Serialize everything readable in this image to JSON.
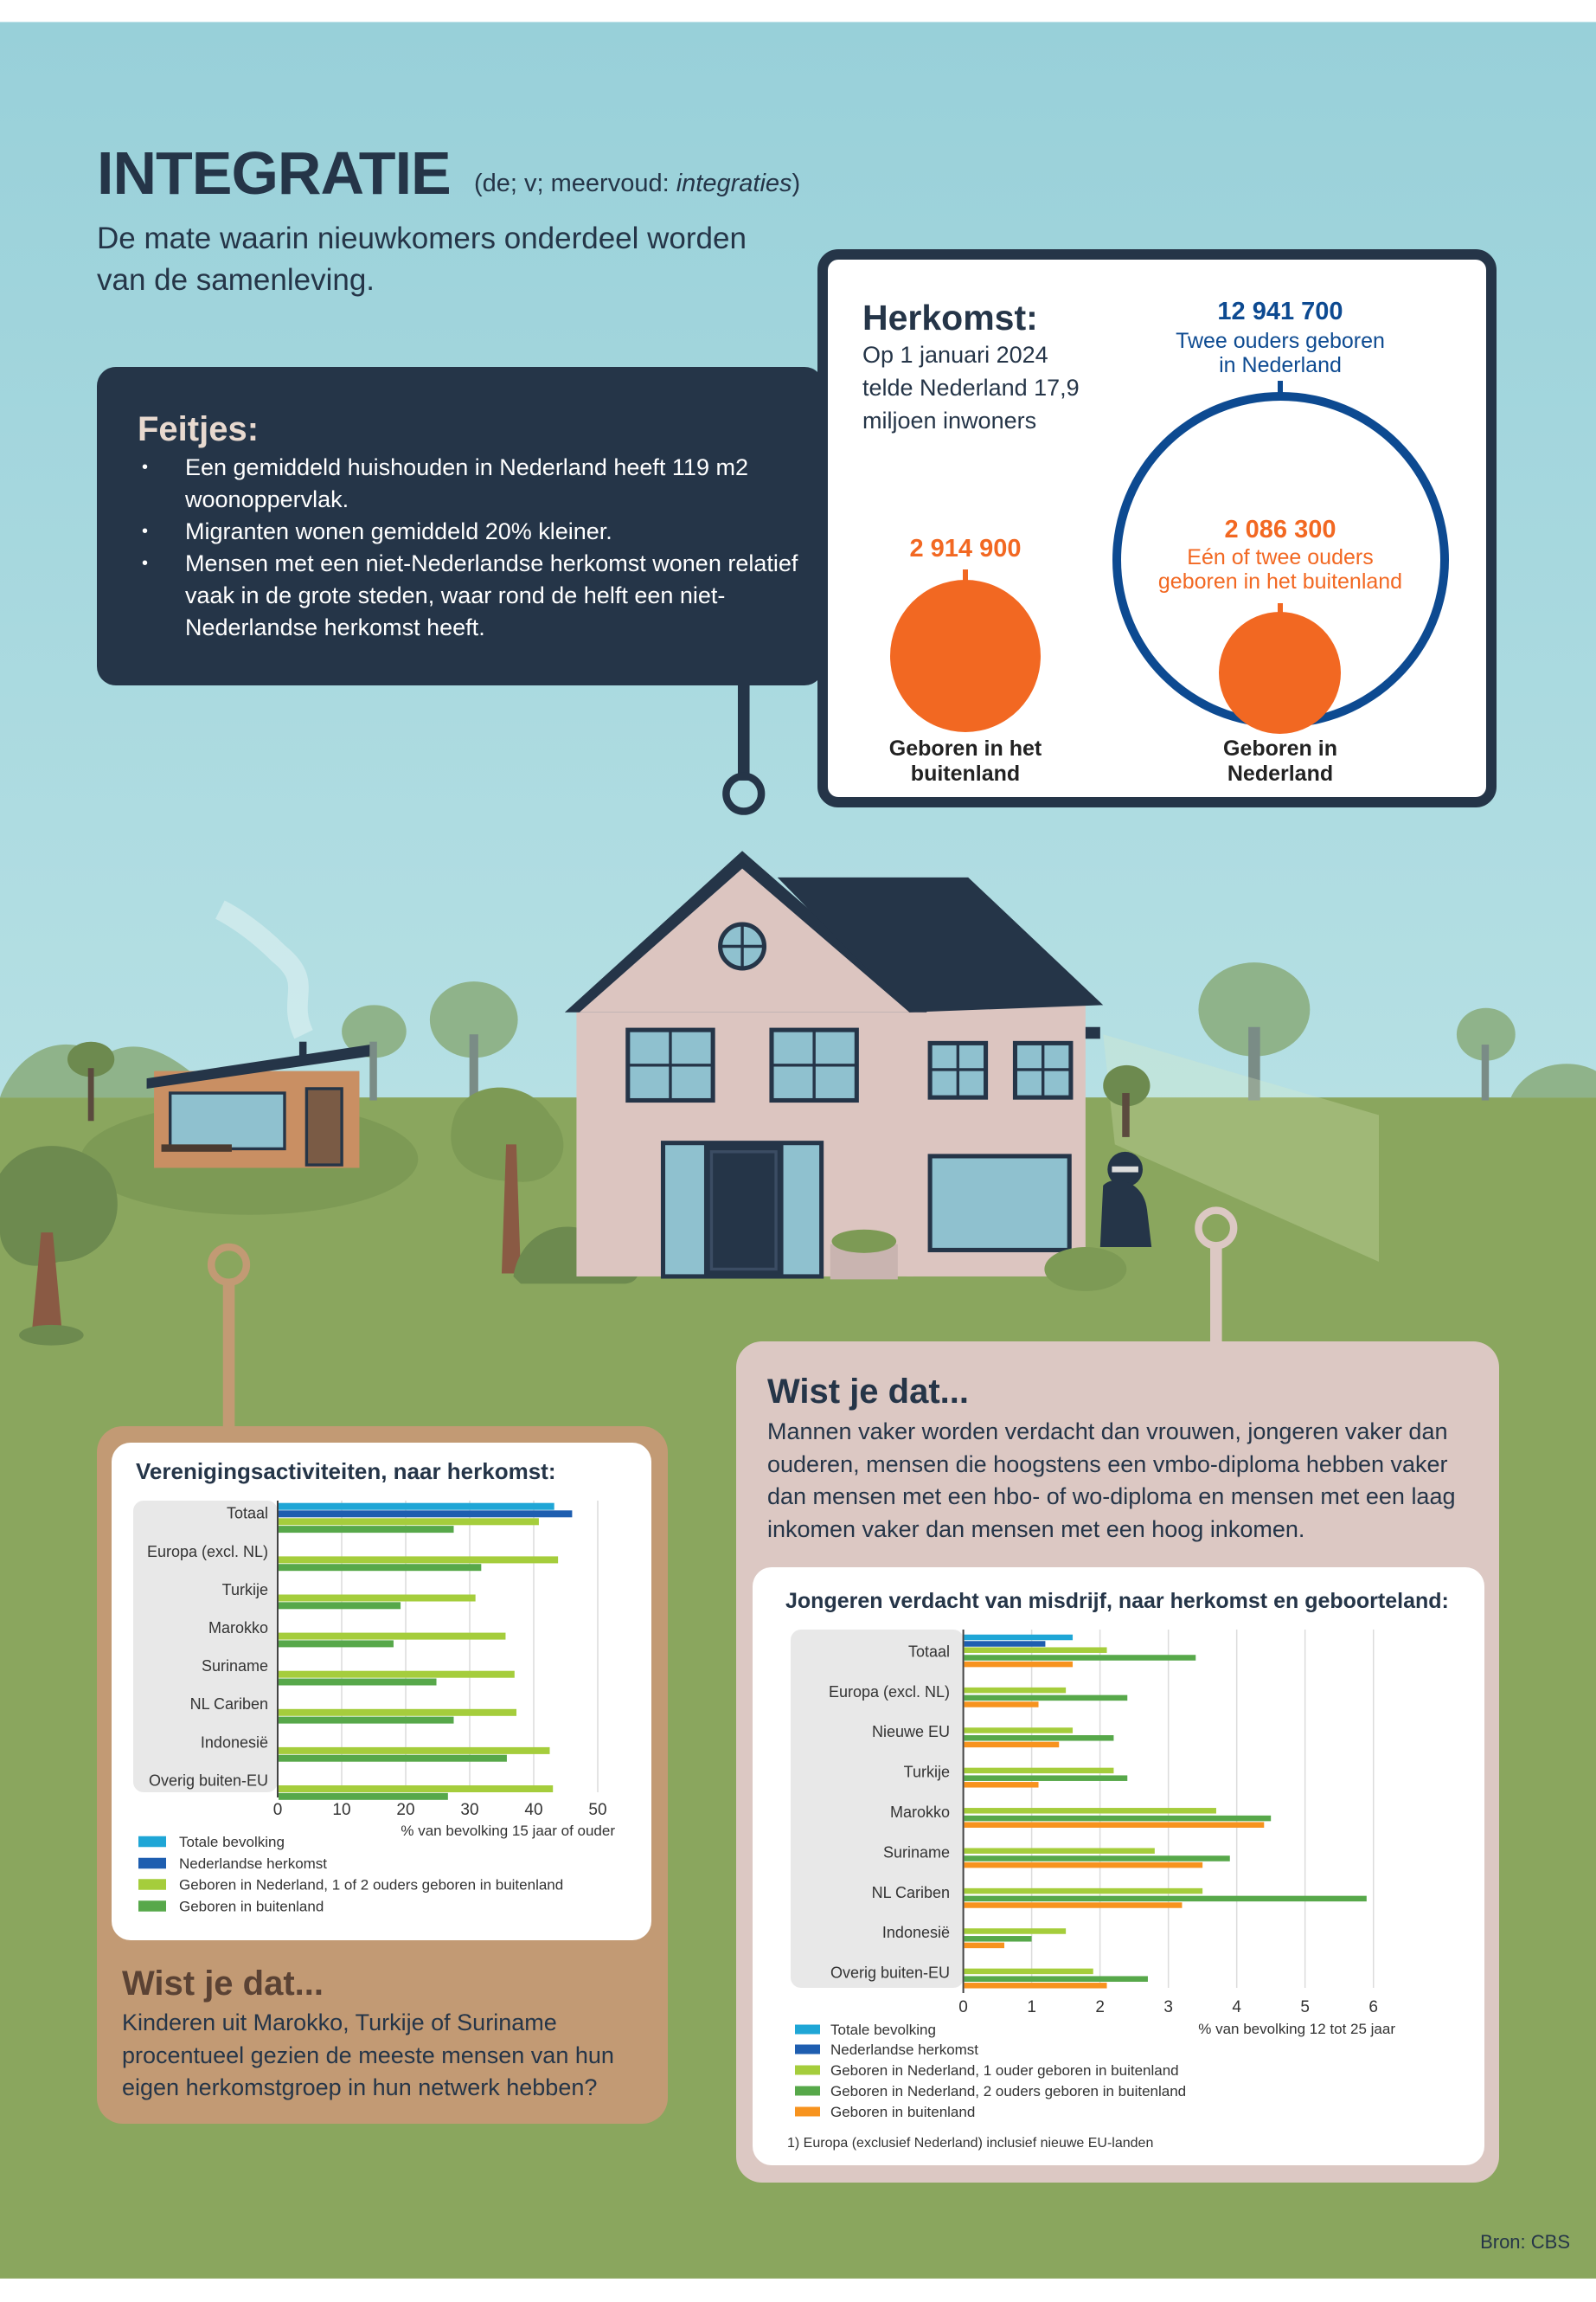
{
  "header": {
    "title": "INTEGRATIE",
    "subtitle_prefix": "(de; v; meervoud: ",
    "subtitle_plural": "integraties",
    "subtitle_suffix": ")",
    "definition": "De mate waarin nieuwkomers onderdeel worden van de samenleving."
  },
  "feitjes": {
    "heading": "Feitjes:",
    "items": [
      "Een gemiddeld huishouden in Nederland heeft 119 m2 woonoppervlak.",
      "Migranten wonen gemiddeld 20% kleiner.",
      "Mensen met een niet-Nederlandse herkomst wonen relatief vaak in de grote steden, waar rond de helft een niet-Nederlandse herkomst heeft."
    ]
  },
  "herkomst": {
    "heading": "Herkomst:",
    "lines": [
      "Op 1 januari 2024",
      "telde Nederland 17,9",
      "miljoen inwoners"
    ],
    "born_abroad": {
      "value": "2 914 900",
      "label1": "Geboren in het",
      "label2": "buitenland"
    },
    "two_parents_nl": {
      "value": "12 941 700",
      "label1": "Twee ouders geboren",
      "label2": "in Nederland"
    },
    "one_or_two_abroad": {
      "value": "2 086 300",
      "label1": "Eén of twee ouders",
      "label2": "geboren in het buitenland"
    },
    "born_nl": {
      "label1": "Geboren in",
      "label2": "Nederland"
    }
  },
  "wist_right": {
    "heading": "Wist je dat...",
    "text": "Mannen vaker worden verdacht dan vrouwen, jongeren vaker dan ouderen, mensen die hoogstens een vmbo-diploma hebben vaker dan mensen met een hbo- of wo-diploma en mensen met een laag inkomen vaker dan mensen met een hoog inkomen."
  },
  "wist_left": {
    "heading": "Wist je dat...",
    "text": "Kinderen uit Marokko, Turkije of Suriname procentueel gezien de meeste mensen van hun eigen herkomstgroep in hun netwerk hebben?"
  },
  "source": "Bron: CBS",
  "colors": {
    "cyan": "#1fa6d6",
    "blue": "#1e5eb0",
    "lime": "#a5cd3c",
    "green": "#57a84a",
    "orange": "#f7931e"
  },
  "chart_data": [
    {
      "type": "bar",
      "orientation": "horizontal",
      "title": "Verenigingsactiviteiten, naar herkomst:",
      "xlabel": "% van bevolking 15 jaar of ouder",
      "xlim": [
        0,
        50
      ],
      "xticks": [
        "0",
        "10",
        "20",
        "30",
        "40",
        "50"
      ],
      "grid": true,
      "categories": [
        "Totaal",
        "Europa (excl. NL)",
        "Turkije",
        "Marokko",
        "Suriname",
        "NL Cariben",
        "Indonesië",
        "Overig buiten-EU"
      ],
      "series": [
        {
          "name": "Totale bevolking",
          "color": "#1fa6d6",
          "values": [
            43.2,
            null,
            null,
            null,
            null,
            null,
            null,
            null
          ]
        },
        {
          "name": "Nederlandse herkomst",
          "color": "#1e5eb0",
          "values": [
            46.0,
            null,
            null,
            null,
            null,
            null,
            null,
            null
          ]
        },
        {
          "name": "Geboren in Nederland, 1 of 2 ouders geboren in buitenland",
          "color": "#a5cd3c",
          "values": [
            40.8,
            43.8,
            30.9,
            35.6,
            37.0,
            37.3,
            42.5,
            43.0
          ]
        },
        {
          "name": "Geboren in buitenland",
          "color": "#57a84a",
          "values": [
            27.5,
            31.8,
            19.2,
            18.1,
            24.8,
            27.5,
            35.8,
            26.6
          ]
        }
      ],
      "legend": "bottom-left"
    },
    {
      "type": "bar",
      "orientation": "horizontal",
      "title": "Jongeren verdacht van misdrijf, naar herkomst en geboorteland:",
      "xlabel": "% van bevolking 12 tot 25 jaar",
      "xlim": [
        0,
        6
      ],
      "xticks": [
        "0",
        "1",
        "2",
        "3",
        "4",
        "5",
        "6"
      ],
      "grid": true,
      "categories": [
        "Totaal",
        "Europa (excl. NL)",
        "Nieuwe EU",
        "Turkije",
        "Marokko",
        "Suriname",
        "NL Cariben",
        "Indonesië",
        "Overig buiten-EU"
      ],
      "series": [
        {
          "name": "Totale bevolking",
          "color": "#1fa6d6",
          "values": [
            1.6,
            null,
            null,
            null,
            null,
            null,
            null,
            null,
            null
          ]
        },
        {
          "name": "Nederlandse herkomst",
          "color": "#1e5eb0",
          "values": [
            1.2,
            null,
            null,
            null,
            null,
            null,
            null,
            null,
            null
          ]
        },
        {
          "name": "Geboren in Nederland, 1 ouder geboren in buitenland",
          "color": "#a5cd3c",
          "values": [
            2.1,
            1.5,
            1.6,
            2.2,
            3.7,
            2.8,
            3.5,
            1.5,
            1.9
          ]
        },
        {
          "name": "Geboren in Nederland, 2 ouders geboren in buitenland",
          "color": "#57a84a",
          "values": [
            3.4,
            2.4,
            2.2,
            2.4,
            4.5,
            3.9,
            5.9,
            1.0,
            2.7
          ]
        },
        {
          "name": "Geboren in buitenland",
          "color": "#f7931e",
          "values": [
            1.6,
            1.1,
            1.4,
            1.1,
            4.4,
            3.5,
            3.2,
            0.6,
            2.1
          ]
        }
      ],
      "footnote": "1) Europa (exclusief Nederland) inclusief nieuwe EU-landen",
      "legend": "bottom-left"
    }
  ]
}
